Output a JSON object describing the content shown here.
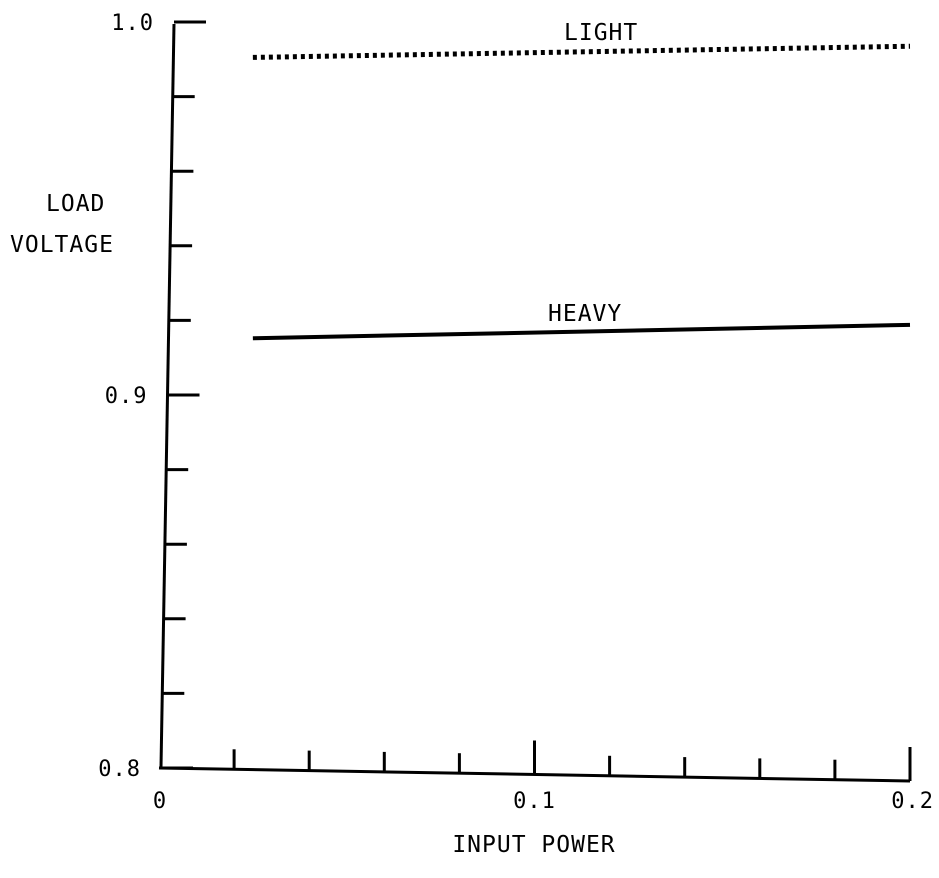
{
  "chart_data": {
    "type": "line",
    "title": "",
    "xlabel": "INPUT POWER",
    "ylabel": [
      "LOAD",
      "VOLTAGE"
    ],
    "xlim": [
      0,
      0.2
    ],
    "ylim": [
      0.8,
      1.0
    ],
    "x_ticks": [
      0,
      0.02,
      0.04,
      0.06,
      0.08,
      0.1,
      0.12,
      0.14,
      0.16,
      0.18,
      0.2
    ],
    "x_tick_labels": [
      {
        "value": 0,
        "label": "0"
      },
      {
        "value": 0.1,
        "label": "0.1"
      },
      {
        "value": 0.2,
        "label": "0.2"
      }
    ],
    "y_ticks": [
      0.8,
      0.82,
      0.84,
      0.86,
      0.88,
      0.9,
      0.92,
      0.94,
      0.96,
      0.98,
      1.0
    ],
    "y_tick_labels": [
      {
        "value": 0.8,
        "label": "0.8"
      },
      {
        "value": 0.9,
        "label": "0.9"
      },
      {
        "value": 1.0,
        "label": "1.0"
      }
    ],
    "grid": false,
    "series": [
      {
        "name": "LIGHT",
        "style": "dotted",
        "color": "#000000",
        "x": [
          0.025,
          0.2
        ],
        "y": [
          0.9905,
          0.9935
        ]
      },
      {
        "name": "HEAVY",
        "style": "solid",
        "color": "#000000",
        "x": [
          0.025,
          0.2
        ],
        "y": [
          0.9152,
          0.9188
        ]
      }
    ]
  }
}
